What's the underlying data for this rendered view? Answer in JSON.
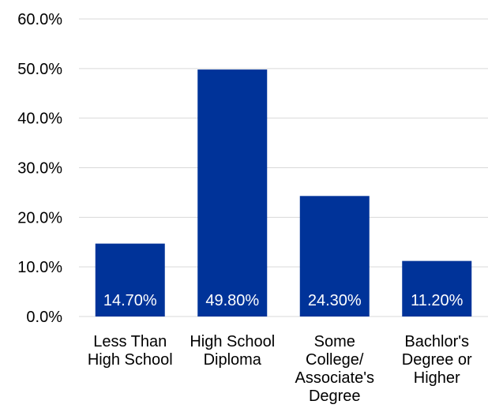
{
  "chart_data": {
    "type": "bar",
    "categories": [
      [
        "Less Than",
        "High School"
      ],
      [
        "High School",
        "Diploma"
      ],
      [
        "Some",
        "College/",
        "Associate's",
        "Degree"
      ],
      [
        "Bachlor's",
        "Degree or",
        "Higher"
      ]
    ],
    "values": [
      14.7,
      49.8,
      24.3,
      11.2
    ],
    "data_labels": [
      "14.70%",
      "49.80%",
      "24.30%",
      "11.20%"
    ],
    "y_ticks": [
      "0.0%",
      "10.0%",
      "20.0%",
      "30.0%",
      "40.0%",
      "50.0%",
      "60.0%"
    ],
    "ylim": [
      0,
      60
    ],
    "grid": true,
    "legend": "none",
    "bar_color": "#003399",
    "gridline_color": "#d9d9d9"
  }
}
